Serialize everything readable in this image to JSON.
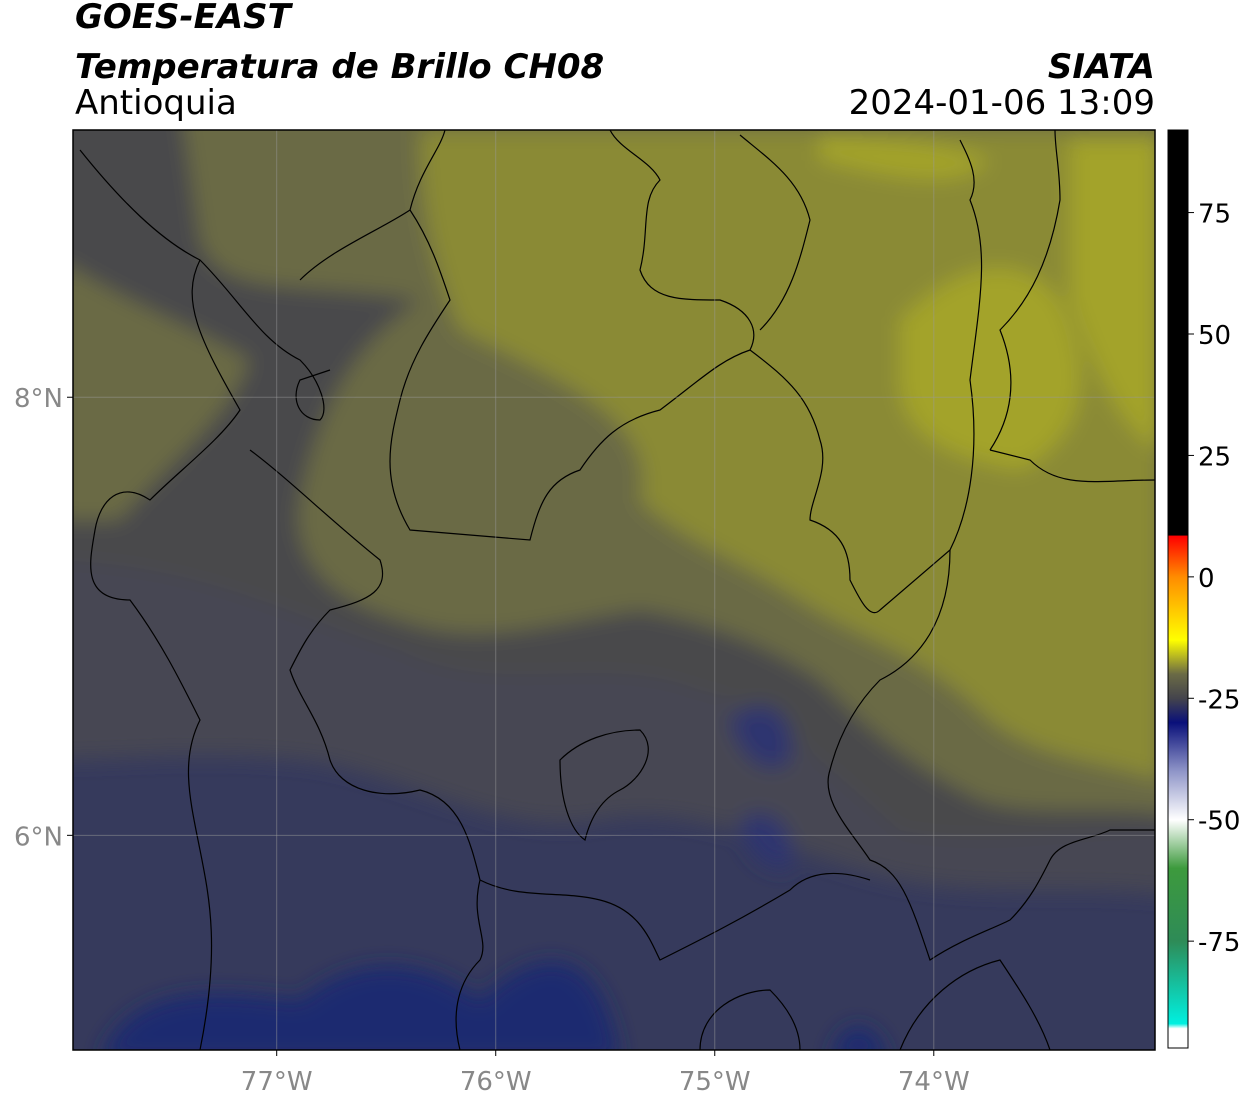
{
  "chart_data": {
    "type": "map",
    "title": "GOES-EAST",
    "subtitle": "Temperatura de Brillo CH08",
    "region": "Antioquia",
    "source": "SIATA",
    "datetime": "2024-01-06 13:09",
    "xlim": [
      -77.93,
      -72.99
    ],
    "ylim": [
      5.02,
      9.22
    ],
    "xticks": [
      {
        "value": -77,
        "label": "77°W"
      },
      {
        "value": -76,
        "label": "76°W"
      },
      {
        "value": -75,
        "label": "75°W"
      },
      {
        "value": -74,
        "label": "74°W"
      }
    ],
    "yticks": [
      {
        "value": 8,
        "label": "8°N"
      },
      {
        "value": 6,
        "label": "6°N"
      }
    ],
    "grid": true,
    "colorbar": {
      "lim": [
        -97,
        92
      ],
      "ticks": [
        75,
        50,
        25,
        0,
        -25,
        -50,
        -75
      ],
      "colormap": [
        {
          "value": 92,
          "color": "#000000"
        },
        {
          "value": 8.6,
          "color": "#000000"
        },
        {
          "value": 8.4,
          "color": "#ff0000"
        },
        {
          "value": 0,
          "color": "#ff8c00"
        },
        {
          "value": -13,
          "color": "#ffff00"
        },
        {
          "value": -20,
          "color": "#6b6b45"
        },
        {
          "value": -25,
          "color": "#44444c"
        },
        {
          "value": -30,
          "color": "#0a107a"
        },
        {
          "value": -40,
          "color": "#8f95c8"
        },
        {
          "value": -50,
          "color": "#ffffff"
        },
        {
          "value": -60,
          "color": "#3d9a3d"
        },
        {
          "value": -75,
          "color": "#2e8b57"
        },
        {
          "value": -92,
          "color": "#00f0e0"
        },
        {
          "value": -93,
          "color": "#ffffff"
        },
        {
          "value": -97,
          "color": "#ffffff"
        }
      ]
    }
  }
}
